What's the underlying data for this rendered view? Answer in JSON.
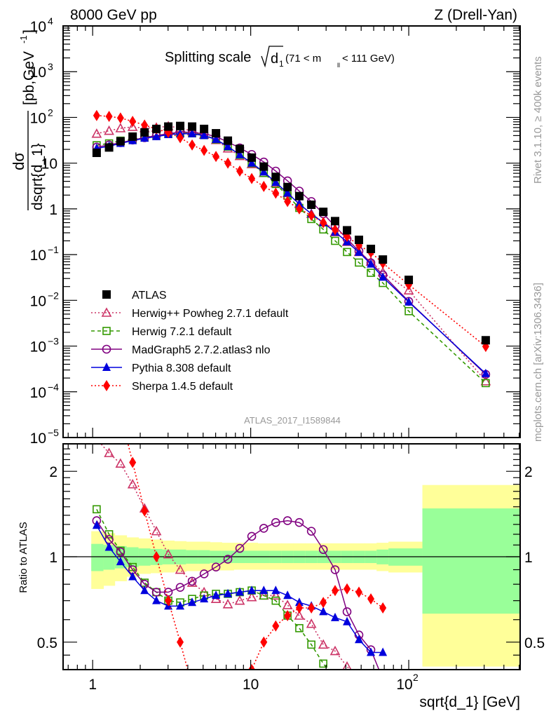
{
  "chart_data": [
    {
      "type": "scatter",
      "title": "Splitting scale",
      "title_sqrt": "d",
      "title_sub": "1",
      "title_range": "(71 < m",
      "title_range_sub": "ll",
      "title_range_end": " < 111 GeV)",
      "header_left": "8000 GeV pp",
      "header_right": "Z (Drell-Yan)",
      "ylabel_num": "dσ",
      "ylabel_den": "dsqrt{d_1}",
      "ylabel_units": "[pb,GeV",
      "ylabel_units_sup": "-1",
      "ylabel_units_end": "]",
      "yscale": "log",
      "ylim": [
        1e-05,
        10000.0
      ],
      "xscale": "log",
      "xlim": [
        0.65,
        507
      ],
      "ytick_labels": [
        {
          "v": 10000.0,
          "base": "10",
          "exp": "4"
        },
        {
          "v": 1000.0,
          "base": "10",
          "exp": "3"
        },
        {
          "v": 100.0,
          "base": "10",
          "exp": "2"
        },
        {
          "v": 10,
          "base": "10",
          "exp": ""
        },
        {
          "v": 1,
          "base": "1",
          "exp": ""
        },
        {
          "v": 0.1,
          "base": "10",
          "exp": "−1"
        },
        {
          "v": 0.01,
          "base": "10",
          "exp": "−2"
        },
        {
          "v": 0.001,
          "base": "10",
          "exp": "−3"
        },
        {
          "v": 0.0001,
          "base": "10",
          "exp": "−4"
        },
        {
          "v": 1e-05,
          "base": "10",
          "exp": "−5"
        }
      ],
      "x": [
        1.06,
        1.27,
        1.5,
        1.79,
        2.13,
        2.53,
        3.01,
        3.58,
        4.26,
        5.07,
        6.03,
        7.17,
        8.53,
        10.15,
        12.1,
        14.4,
        17.1,
        20.3,
        24.2,
        28.8,
        34.2,
        40.7,
        48.4,
        57.6,
        68.6,
        100,
        307
      ],
      "series": [
        {
          "name": "ATLAS",
          "color": "#000000",
          "marker": "square",
          "line": "none",
          "values": [
            16.8,
            22,
            30,
            38,
            47,
            56,
            63,
            65,
            63,
            56,
            45,
            31,
            20.5,
            13.2,
            8.4,
            5.0,
            3.0,
            1.9,
            1.23,
            0.86,
            0.54,
            0.34,
            0.21,
            0.133,
            0.078,
            0.028,
            0.00134
          ]
        },
        {
          "name": "Herwig++ Powheg 2.7.1 default",
          "color": "#cc3366",
          "marker": "triangle-open",
          "line": "dotted",
          "values": [
            44,
            51,
            58,
            62,
            58,
            60,
            64,
            59,
            50,
            42,
            32,
            21,
            14.3,
            9.5,
            6.1,
            3.65,
            2.2,
            1.28,
            0.78,
            0.51,
            0.31,
            0.19,
            0.114,
            0.07,
            0.041,
            0.0165,
            0.00017
          ]
        },
        {
          "name": "Herwig 7.2.1 default",
          "color": "#339900",
          "marker": "square-open",
          "line": "dashed",
          "values": [
            24.6,
            27,
            31,
            33,
            37,
            40,
            44,
            45,
            45,
            41,
            33,
            23,
            15.2,
            10,
            6.1,
            3.5,
            1.95,
            1.05,
            0.6,
            0.355,
            0.2,
            0.114,
            0.067,
            0.04,
            0.024,
            0.0058,
            0.000155
          ]
        },
        {
          "name": "MadGraph5 2.7.2.atlas3 nlo",
          "color": "#800080",
          "marker": "circle-open",
          "line": "solid",
          "values": [
            22.4,
            25,
            28,
            32,
            36,
            40,
            44,
            48,
            47,
            44,
            38,
            29,
            21.5,
            15.5,
            10.6,
            6.7,
            4.1,
            2.45,
            1.45,
            0.78,
            0.42,
            0.22,
            0.12,
            0.066,
            0.036,
            0.0095,
            0.00024
          ]
        },
        {
          "name": "Pythia 8.308 default",
          "color": "#0000dd",
          "marker": "triangle",
          "line": "solid",
          "values": [
            21,
            23.5,
            27,
            31,
            35,
            38,
            42,
            44,
            44,
            40,
            33,
            23,
            15.3,
            10,
            6.4,
            3.8,
            2.2,
            1.28,
            0.78,
            0.5,
            0.31,
            0.19,
            0.112,
            0.062,
            0.032,
            0.0092,
            0.00025
          ]
        },
        {
          "name": "Sherpa 1.4.5 default",
          "color": "#ff0000",
          "marker": "diamond",
          "line": "dotted",
          "values": [
            110,
            105,
            97,
            82,
            68,
            56,
            47,
            36,
            25,
            19,
            14,
            10,
            6.7,
            4.6,
            3.1,
            2.2,
            1.45,
            1.0,
            0.72,
            0.5,
            0.35,
            0.25,
            0.16,
            0.112,
            0.065,
            0.022,
            0.00098
          ]
        }
      ],
      "watermark": "ATLAS_2017_I1589844",
      "side_text_top": "Rivet 3.1.10, ≥ 400k events",
      "side_text_bottom": "mcplots.cern.ch [arXiv:1306.3436]"
    },
    {
      "type": "line",
      "ylabel": "Ratio to ATLAS",
      "xlabel": "sqrt{d_1} [GeV]",
      "yscale": "log",
      "ylim": [
        0.4,
        2.5
      ],
      "xlim": [
        0.65,
        507
      ],
      "ytick_labels": [
        "2",
        "1",
        "0.5"
      ],
      "ytick_values": [
        2,
        1,
        0.5
      ],
      "xtick_labels": [
        {
          "v": 1,
          "base": "1",
          "exp": ""
        },
        {
          "v": 10,
          "base": "10",
          "exp": ""
        },
        {
          "v": 100,
          "base": "10",
          "exp": "2"
        }
      ],
      "band_edges": [
        0.98,
        1.17,
        1.38,
        1.64,
        1.95,
        2.32,
        2.76,
        3.28,
        3.9,
        4.64,
        5.52,
        6.56,
        7.8,
        9.3,
        11.06,
        13.1,
        15.6,
        18.6,
        22.1,
        26.3,
        31.3,
        37.2,
        44.2,
        52.6,
        62.6,
        74.4,
        122,
        507
      ],
      "band_inner_lo": [
        0.89,
        0.9,
        0.91,
        0.92,
        0.93,
        0.935,
        0.94,
        0.94,
        0.945,
        0.945,
        0.95,
        0.95,
        0.95,
        0.95,
        0.95,
        0.95,
        0.95,
        0.95,
        0.95,
        0.95,
        0.95,
        0.95,
        0.95,
        0.95,
        0.94,
        0.93,
        0.63
      ],
      "band_inner_hi": [
        1.11,
        1.1,
        1.09,
        1.08,
        1.07,
        1.065,
        1.06,
        1.06,
        1.055,
        1.055,
        1.05,
        1.05,
        1.05,
        1.05,
        1.05,
        1.05,
        1.05,
        1.05,
        1.05,
        1.05,
        1.05,
        1.05,
        1.05,
        1.05,
        1.06,
        1.07,
        1.48
      ],
      "band_outer_lo": [
        0.77,
        0.79,
        0.82,
        0.85,
        0.87,
        0.875,
        0.88,
        0.885,
        0.89,
        0.89,
        0.895,
        0.895,
        0.9,
        0.9,
        0.9,
        0.9,
        0.9,
        0.9,
        0.9,
        0.9,
        0.9,
        0.9,
        0.9,
        0.9,
        0.89,
        0.88,
        0.41
      ],
      "band_outer_hi": [
        1.23,
        1.21,
        1.19,
        1.17,
        1.16,
        1.15,
        1.14,
        1.135,
        1.13,
        1.13,
        1.125,
        1.12,
        1.12,
        1.12,
        1.115,
        1.115,
        1.115,
        1.115,
        1.115,
        1.115,
        1.115,
        1.115,
        1.115,
        1.115,
        1.12,
        1.13,
        1.79
      ],
      "ratios": [
        {
          "name": "Herwig++ Powheg 2.7.1 default",
          "values": [
            2.6,
            2.32,
            2.13,
            1.8,
            1.48,
            1.23,
            1.02,
            0.9,
            0.81,
            0.75,
            0.71,
            0.68,
            0.7,
            0.72,
            0.73,
            0.73,
            0.675,
            0.62,
            0.58,
            0.49,
            0.465,
            0.41,
            0.37,
            0.33,
            0.3
          ]
        },
        {
          "name": "Herwig 7.2.1 default",
          "values": [
            1.47,
            1.2,
            1.05,
            0.92,
            0.81,
            0.75,
            0.7,
            0.69,
            0.71,
            0.73,
            0.74,
            0.74,
            0.75,
            0.76,
            0.73,
            0.7,
            0.62,
            0.56,
            0.49,
            0.42,
            0.37,
            0.33,
            0.3,
            0.28,
            0.26
          ]
        },
        {
          "name": "MadGraph5 2.7.2.atlas3 nlo",
          "values": [
            1.34,
            1.15,
            1.04,
            0.9,
            0.8,
            0.75,
            0.75,
            0.78,
            0.82,
            0.87,
            0.92,
            0.98,
            1.07,
            1.18,
            1.26,
            1.32,
            1.34,
            1.32,
            1.23,
            1.06,
            0.9,
            0.64,
            0.53,
            0.47,
            0.37
          ]
        },
        {
          "name": "Pythia 8.308 default",
          "values": [
            1.29,
            1.08,
            0.96,
            0.85,
            0.76,
            0.7,
            0.67,
            0.67,
            0.69,
            0.71,
            0.73,
            0.74,
            0.75,
            0.76,
            0.76,
            0.76,
            0.73,
            0.69,
            0.67,
            0.64,
            0.61,
            0.59,
            0.51,
            0.46,
            0.46
          ]
        },
        {
          "name": "Sherpa 1.4.5 default",
          "values": [
            6.5,
            4.8,
            3.2,
            2.15,
            1.45,
            1.0,
            0.7,
            0.5,
            0.35,
            0.3,
            0.28,
            0.3,
            0.33,
            0.4,
            0.5,
            0.57,
            0.62,
            0.66,
            0.66,
            0.69,
            0.76,
            0.77,
            0.75,
            0.71,
            0.66
          ]
        }
      ]
    }
  ]
}
